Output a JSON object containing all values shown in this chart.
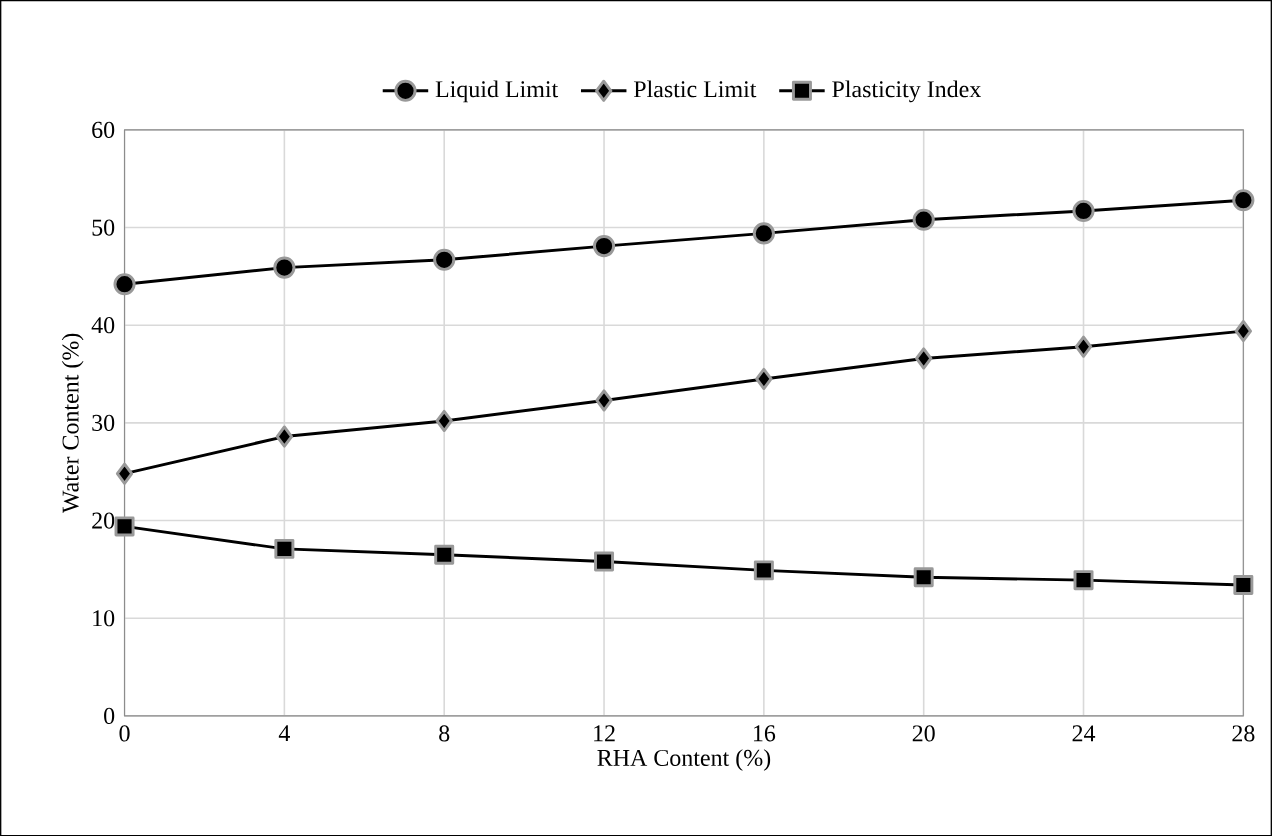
{
  "chart_data": {
    "type": "line",
    "xlabel": "RHA Content (%)",
    "ylabel": "Water Content (%)",
    "x": [
      0,
      4,
      8,
      12,
      16,
      20,
      24,
      28
    ],
    "series": [
      {
        "name": "Liquid Limit",
        "color": "#000000",
        "marker": "circle",
        "values": [
          44.2,
          45.9,
          46.7,
          48.1,
          49.4,
          50.8,
          51.7,
          52.8
        ]
      },
      {
        "name": "Plastic Limit",
        "color": "#000000",
        "marker": "diamond",
        "values": [
          24.8,
          28.6,
          30.2,
          32.3,
          34.5,
          36.6,
          37.8,
          39.4
        ]
      },
      {
        "name": "Plasticity Index",
        "color": "#000000",
        "marker": "square",
        "values": [
          19.4,
          17.1,
          16.5,
          15.8,
          14.9,
          14.2,
          13.9,
          13.4
        ]
      }
    ],
    "xlim": [
      0,
      28
    ],
    "xticks": [
      0,
      4,
      8,
      12,
      16,
      20,
      24,
      28
    ],
    "ylim": [
      0,
      60
    ],
    "yticks": [
      0,
      10,
      20,
      30,
      40,
      50,
      60
    ],
    "grid": true,
    "legend": "top",
    "line_style": "solid"
  }
}
